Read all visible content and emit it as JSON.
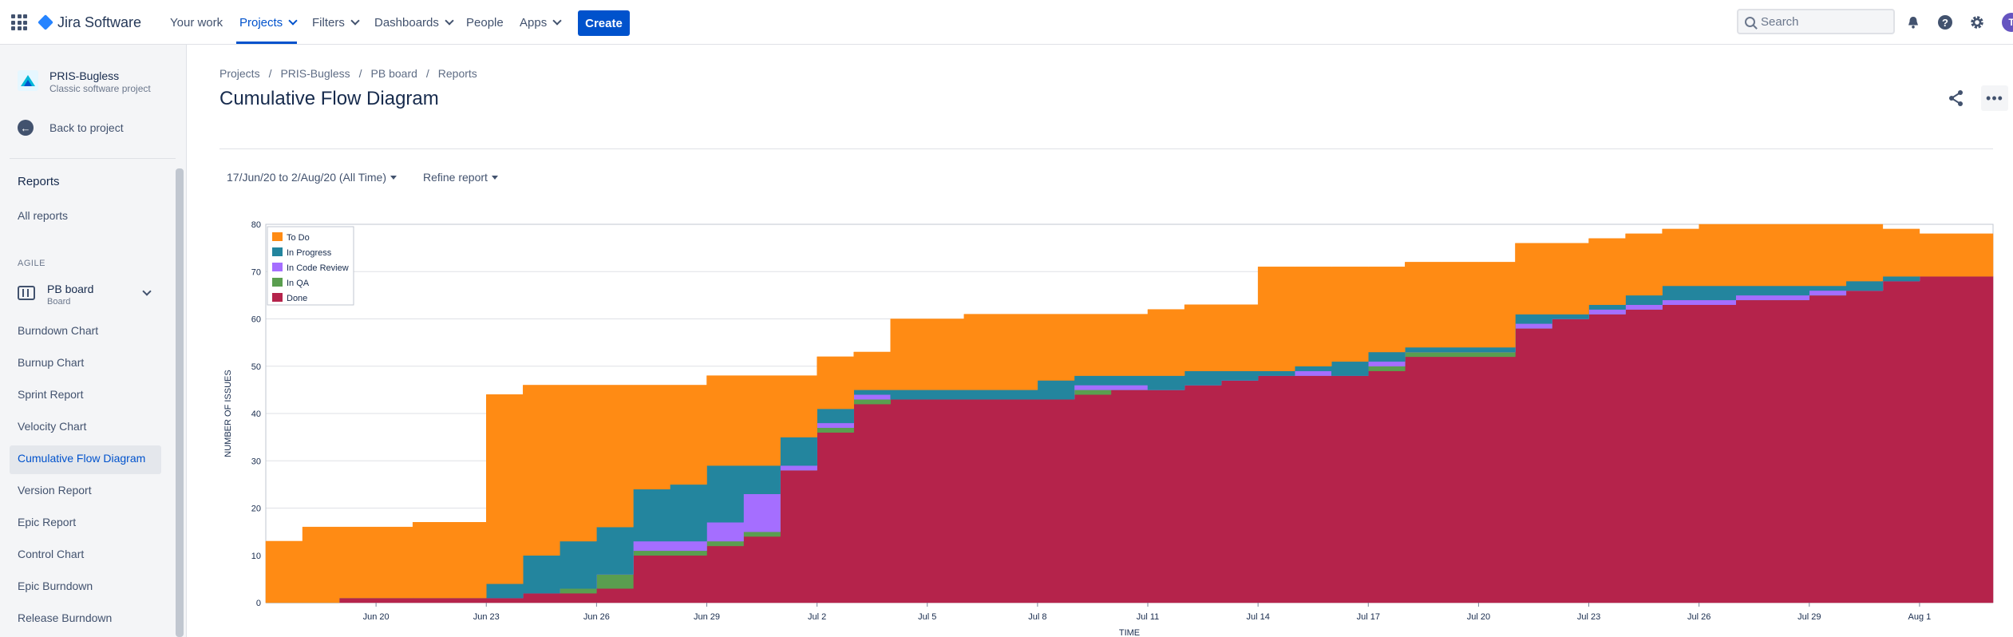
{
  "topnav": {
    "logo": "Jira Software",
    "items": [
      {
        "label": "Your work",
        "dropdown": false
      },
      {
        "label": "Projects",
        "dropdown": true,
        "active": true
      },
      {
        "label": "Filters",
        "dropdown": true
      },
      {
        "label": "Dashboards",
        "dropdown": true
      },
      {
        "label": "People",
        "dropdown": false
      },
      {
        "label": "Apps",
        "dropdown": true
      }
    ],
    "create_label": "Create",
    "search_placeholder": "Search",
    "avatar_initial": "T",
    "accent": "#0052cc"
  },
  "sidebar": {
    "project_name": "PRIS-Bugless",
    "project_type": "Classic software project",
    "back_label": "Back to project",
    "reports_heading": "Reports",
    "all_reports": "All reports",
    "section_label": "AGILE",
    "board_name": "PB board",
    "board_type": "Board",
    "reports": [
      "Burndown Chart",
      "Burnup Chart",
      "Sprint Report",
      "Velocity Chart",
      "Cumulative Flow Diagram",
      "Version Report",
      "Epic Report",
      "Control Chart",
      "Epic Burndown",
      "Release Burndown"
    ],
    "active_report": "Cumulative Flow Diagram"
  },
  "main": {
    "breadcrumbs": [
      "Projects",
      "PRIS-Bugless",
      "PB board",
      "Reports"
    ],
    "title": "Cumulative Flow Diagram",
    "date_filter": "17/Jun/20 to 2/Aug/20 (All Time)",
    "refine_label": "Refine report"
  },
  "chart_data": {
    "type": "area",
    "stacked": true,
    "xlabel": "TIME",
    "ylabel": "NUMBER OF ISSUES",
    "ylim": [
      0,
      80
    ],
    "yticks": [
      0,
      10,
      20,
      30,
      40,
      50,
      60,
      70,
      80
    ],
    "xlim": [
      "2020-06-17",
      "2020-08-03"
    ],
    "xticks": [
      {
        "date": "2020-06-20",
        "label": "Jun 20"
      },
      {
        "date": "2020-06-23",
        "label": "Jun 23"
      },
      {
        "date": "2020-06-26",
        "label": "Jun 26"
      },
      {
        "date": "2020-06-29",
        "label": "Jun 29"
      },
      {
        "date": "2020-07-02",
        "label": "Jul 2"
      },
      {
        "date": "2020-07-05",
        "label": "Jul 5"
      },
      {
        "date": "2020-07-08",
        "label": "Jul 8"
      },
      {
        "date": "2020-07-11",
        "label": "Jul 11"
      },
      {
        "date": "2020-07-14",
        "label": "Jul 14"
      },
      {
        "date": "2020-07-17",
        "label": "Jul 17"
      },
      {
        "date": "2020-07-20",
        "label": "Jul 20"
      },
      {
        "date": "2020-07-23",
        "label": "Jul 23"
      },
      {
        "date": "2020-07-26",
        "label": "Jul 26"
      },
      {
        "date": "2020-07-29",
        "label": "Jul 29"
      },
      {
        "date": "2020-08-01",
        "label": "Aug 1"
      }
    ],
    "grid": "horizontal",
    "legend": "top-left",
    "x": [
      "2020-06-17",
      "2020-06-18",
      "2020-06-19",
      "2020-06-20",
      "2020-06-21",
      "2020-06-22",
      "2020-06-23",
      "2020-06-24",
      "2020-06-25",
      "2020-06-26",
      "2020-06-27",
      "2020-06-28",
      "2020-06-29",
      "2020-06-30",
      "2020-07-01",
      "2020-07-02",
      "2020-07-03",
      "2020-07-04",
      "2020-07-05",
      "2020-07-06",
      "2020-07-07",
      "2020-07-08",
      "2020-07-09",
      "2020-07-10",
      "2020-07-11",
      "2020-07-12",
      "2020-07-13",
      "2020-07-14",
      "2020-07-15",
      "2020-07-16",
      "2020-07-17",
      "2020-07-18",
      "2020-07-19",
      "2020-07-20",
      "2020-07-21",
      "2020-07-22",
      "2020-07-23",
      "2020-07-24",
      "2020-07-25",
      "2020-07-26",
      "2020-07-27",
      "2020-07-28",
      "2020-07-29",
      "2020-07-30",
      "2020-07-31",
      "2020-08-01",
      "2020-08-02",
      "2020-08-03"
    ],
    "series": [
      {
        "name": "Done",
        "color": "#b5234b",
        "values": [
          0,
          0,
          1,
          1,
          1,
          1,
          1,
          2,
          2,
          3,
          10,
          10,
          12,
          14,
          28,
          36,
          42,
          43,
          43,
          43,
          43,
          43,
          44,
          45,
          45,
          46,
          47,
          48,
          48,
          48,
          49,
          52,
          52,
          52,
          58,
          60,
          61,
          62,
          63,
          63,
          64,
          64,
          65,
          66,
          68,
          69,
          69,
          69
        ]
      },
      {
        "name": "In QA",
        "color": "#5a9e4f",
        "values": [
          0,
          0,
          0,
          0,
          0,
          0,
          0,
          0,
          1,
          3,
          1,
          1,
          1,
          1,
          0,
          1,
          1,
          0,
          0,
          0,
          0,
          0,
          1,
          0,
          0,
          0,
          0,
          0,
          0,
          0,
          1,
          1,
          1,
          1,
          0,
          0,
          0,
          0,
          0,
          0,
          0,
          0,
          0,
          0,
          0,
          0,
          0,
          0
        ]
      },
      {
        "name": "In Code Review",
        "color": "#a56eff",
        "values": [
          0,
          0,
          0,
          0,
          0,
          0,
          0,
          0,
          0,
          0,
          2,
          2,
          4,
          8,
          1,
          1,
          1,
          0,
          0,
          0,
          0,
          0,
          1,
          1,
          0,
          0,
          0,
          0,
          1,
          0,
          1,
          0,
          0,
          0,
          1,
          0,
          1,
          1,
          1,
          1,
          1,
          1,
          1,
          0,
          0,
          0,
          0,
          0
        ]
      },
      {
        "name": "In Progress",
        "color": "#23859e",
        "values": [
          0,
          0,
          0,
          0,
          0,
          0,
          3,
          8,
          10,
          10,
          11,
          12,
          12,
          6,
          6,
          3,
          1,
          2,
          2,
          2,
          2,
          4,
          2,
          2,
          3,
          3,
          2,
          1,
          1,
          3,
          2,
          1,
          1,
          1,
          2,
          1,
          1,
          2,
          3,
          3,
          2,
          2,
          1,
          2,
          1,
          0,
          0,
          0
        ]
      },
      {
        "name": "To Do",
        "color": "#ff8b14",
        "values": [
          13,
          16,
          15,
          15,
          16,
          16,
          40,
          36,
          33,
          30,
          22,
          21,
          19,
          19,
          13,
          11,
          8,
          15,
          15,
          16,
          16,
          14,
          13,
          13,
          14,
          14,
          14,
          22,
          21,
          20,
          18,
          18,
          18,
          18,
          15,
          15,
          14,
          13,
          12,
          13,
          13,
          13,
          13,
          12,
          10,
          9,
          9,
          9
        ]
      }
    ]
  }
}
